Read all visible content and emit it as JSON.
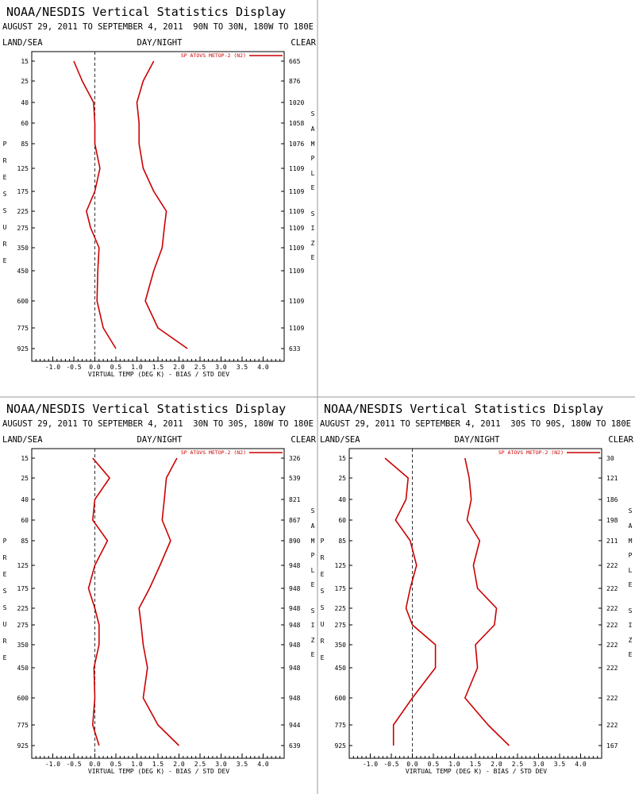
{
  "page": {
    "title": "NOAA/NESDIS Vertical Statistics Display",
    "date_range": "AUGUST 29, 2011 TO SEPTEMBER 4, 2011",
    "left_label": "LAND/SEA",
    "center_label": "DAY/NIGHT",
    "right_label": "CLEAR",
    "legend": "SP ATOVS METOP-2 (N2)",
    "xlabel": "VIRTUAL TEMP (DEG K) - BIAS / STD DEV",
    "ylabel": "PRESSURE",
    "y2label": "SAMPLE SIZE",
    "x_ticks": [
      "-1.0",
      "-0.5",
      "0.0",
      "0.5",
      "1.0",
      "1.5",
      "2.0",
      "2.5",
      "3.0",
      "3.5",
      "4.0"
    ],
    "pressure_levels": [
      "15",
      "25",
      "40",
      "60",
      "85",
      "125",
      "175",
      "225",
      "275",
      "350",
      "450",
      "600",
      "775",
      "925"
    ],
    "series_color": "#cc0000"
  },
  "chart_data": [
    {
      "type": "line",
      "region": "90N TO 30N, 180W TO 180E",
      "xlim": [
        -1.5,
        4.5
      ],
      "pressure": [
        15,
        25,
        40,
        60,
        85,
        125,
        175,
        225,
        275,
        350,
        450,
        600,
        775,
        925
      ],
      "series": [
        {
          "values": [
            -0.5,
            -0.3,
            -0.03,
            0.0,
            0.0,
            0.12,
            0.0,
            -0.2,
            -0.1,
            0.1,
            0.07,
            0.05,
            0.2,
            0.5
          ]
        },
        {
          "values": [
            1.4,
            1.15,
            1.0,
            1.05,
            1.05,
            1.15,
            1.4,
            1.7,
            1.65,
            1.6,
            1.4,
            1.2,
            1.5,
            2.2
          ]
        }
      ],
      "sample_size": [
        "665",
        "876",
        "1020",
        "1058",
        "1076",
        "1109",
        "1109",
        "1109",
        "1109",
        "1109",
        "1109",
        "1109",
        "1109",
        "633"
      ]
    },
    {
      "type": "line",
      "region": "30N TO 30S, 180W TO 180E",
      "xlim": [
        -1.5,
        4.5
      ],
      "pressure": [
        15,
        25,
        40,
        60,
        85,
        125,
        175,
        225,
        275,
        350,
        450,
        600,
        775,
        925
      ],
      "series": [
        {
          "values": [
            -0.05,
            0.35,
            0.0,
            -0.05,
            0.3,
            0.0,
            -0.15,
            0.0,
            0.1,
            0.1,
            -0.02,
            0.0,
            -0.05,
            0.1
          ]
        },
        {
          "values": [
            1.95,
            1.7,
            1.65,
            1.6,
            1.8,
            1.55,
            1.3,
            1.05,
            1.1,
            1.15,
            1.25,
            1.15,
            1.5,
            2.0
          ]
        }
      ],
      "sample_size": [
        "326",
        "539",
        "821",
        "867",
        "890",
        "948",
        "948",
        "948",
        "948",
        "948",
        "948",
        "948",
        "944",
        "639"
      ]
    },
    {
      "type": "line",
      "region": "30S TO 90S, 180W TO 180E",
      "xlim": [
        -1.5,
        4.5
      ],
      "pressure": [
        15,
        25,
        40,
        60,
        85,
        125,
        175,
        225,
        275,
        350,
        450,
        600,
        775,
        925
      ],
      "series": [
        {
          "values": [
            -0.65,
            -0.1,
            -0.15,
            -0.4,
            -0.05,
            0.1,
            -0.05,
            -0.15,
            0.0,
            0.55,
            0.55,
            0.0,
            -0.45,
            -0.45
          ]
        },
        {
          "values": [
            1.25,
            1.35,
            1.4,
            1.3,
            1.6,
            1.45,
            1.55,
            2.0,
            1.95,
            1.5,
            1.55,
            1.25,
            1.8,
            2.3
          ]
        }
      ],
      "sample_size": [
        "30",
        "121",
        "186",
        "198",
        "211",
        "222",
        "222",
        "222",
        "222",
        "222",
        "222",
        "222",
        "222",
        "167"
      ]
    }
  ]
}
